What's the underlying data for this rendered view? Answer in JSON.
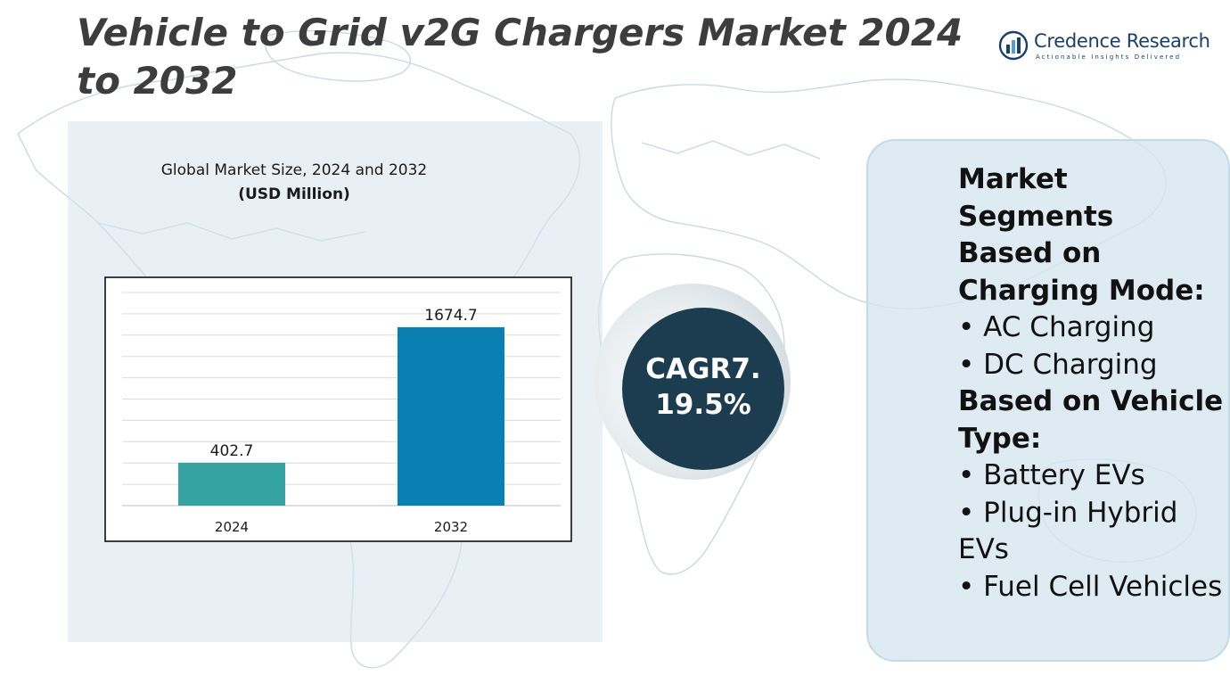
{
  "title": "Vehicle to Grid v2G Chargers Market 2024 to 2032",
  "logo": {
    "name": "Credence Research",
    "tagline": "Actionable Insights Delivered"
  },
  "chart_data": {
    "type": "bar",
    "title": "Global Market Size, 2024 and 2032",
    "subtitle": "(USD Million)",
    "categories": [
      "2024",
      "2032"
    ],
    "values": [
      402.7,
      1674.7
    ],
    "value_labels": [
      "402.7",
      "1674.7"
    ],
    "colors": [
      "#35a3a2",
      "#0a80b2"
    ],
    "ylim": [
      0,
      2000
    ],
    "grid": true,
    "xlabel": "",
    "ylabel": ""
  },
  "cagr": {
    "label": "CAGR7.",
    "value": "19.5%",
    "color": "#1c3d4f"
  },
  "segments": {
    "heading": "Market Segments",
    "groups": [
      {
        "heading": "Based on Charging Mode:",
        "items": [
          "• AC Charging",
          "• DC Charging"
        ]
      },
      {
        "heading": "Based on Vehicle Type:",
        "items": [
          "• Battery EVs",
          "• Plug-in Hybrid EVs",
          "• Fuel Cell Vehicles"
        ]
      }
    ]
  }
}
